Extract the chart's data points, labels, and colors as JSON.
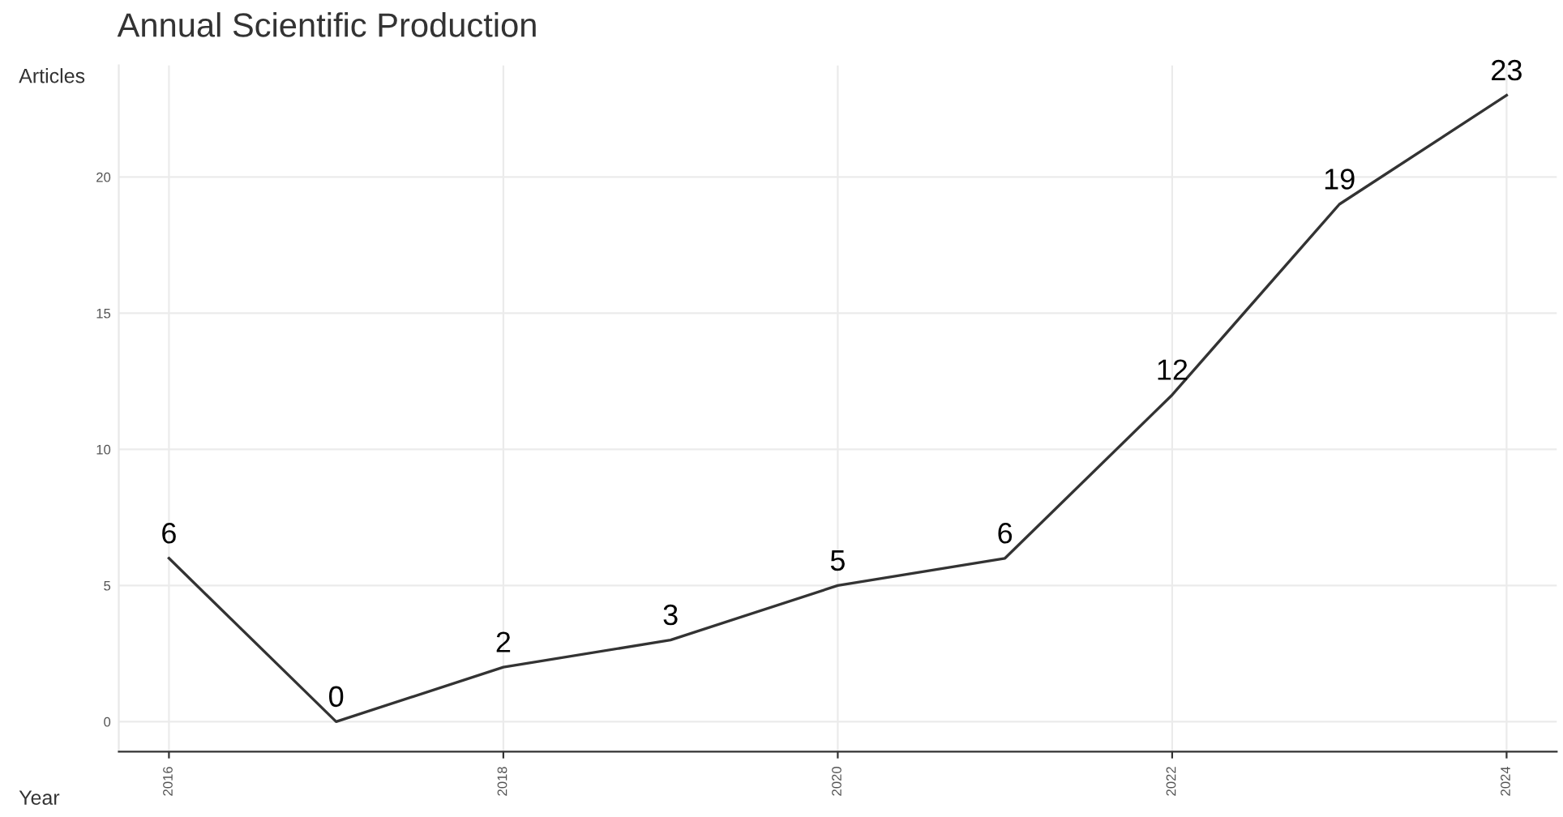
{
  "chart_data": {
    "type": "line",
    "title": "Annual Scientific Production",
    "xlabel": "Year",
    "ylabel": "Articles",
    "x": [
      2016,
      2017,
      2018,
      2019,
      2020,
      2021,
      2022,
      2023,
      2024
    ],
    "series": [
      {
        "color": "#333333",
        "values": [
          6,
          0,
          2,
          3,
          5,
          6,
          12,
          19,
          23
        ]
      }
    ],
    "xlim": [
      2015.7,
      2024.3
    ],
    "xticks": [
      2016,
      2018,
      2020,
      2022,
      2024
    ],
    "ylim": [
      -1.1,
      24.1
    ],
    "yticks": [
      0,
      5,
      10,
      15,
      20
    ],
    "grid": true,
    "data_labels": true,
    "marker": "none",
    "line_style": "solid"
  }
}
